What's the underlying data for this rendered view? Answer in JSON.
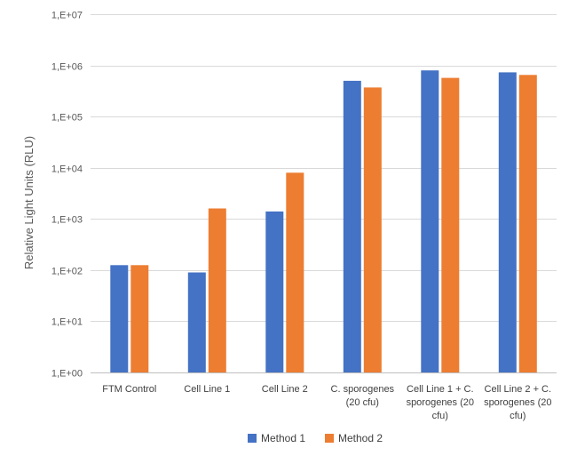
{
  "chart_data": {
    "type": "bar",
    "title": "",
    "xlabel": "",
    "ylabel": "Relative Light Units (RLU)",
    "yscale": "log",
    "ylim": [
      1,
      10000000
    ],
    "yticks": [
      1,
      10,
      100,
      1000,
      10000,
      100000,
      1000000,
      10000000
    ],
    "ytick_labels": [
      "1,E+00",
      "1,E+01",
      "1,E+02",
      "1,E+03",
      "1,E+04",
      "1,E+05",
      "1,E+06",
      "1,E+07"
    ],
    "categories": [
      [
        "FTM Control"
      ],
      [
        "Cell Line 1"
      ],
      [
        "Cell Line 2"
      ],
      [
        "C. sporogenes",
        "(20 cfu)"
      ],
      [
        "Cell Line 1 + C.",
        "sporogenes (20",
        "cfu)"
      ],
      [
        "Cell Line 2 + C.",
        "sporogenes (20",
        "cfu)"
      ]
    ],
    "series": [
      {
        "name": "Method 1",
        "color": "#4472C4",
        "values": [
          125,
          90,
          1400,
          500000,
          800000,
          730000
        ]
      },
      {
        "name": "Method 2",
        "color": "#ED7D31",
        "values": [
          125,
          1600,
          8000,
          370000,
          570000,
          650000
        ]
      }
    ],
    "grid": true,
    "legend": "bottom"
  }
}
